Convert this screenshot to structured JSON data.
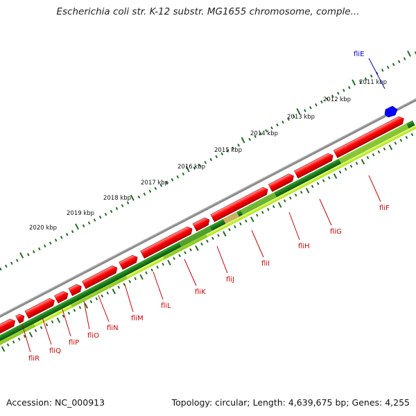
{
  "title": "Escherichia coli str. K-12 substr. MG1655 chromosome, comple...",
  "footer": {
    "accession": "Accession: NC_000913",
    "summary": "Topology: circular; Length: 4,639,675 bp; Genes: 4,255"
  },
  "scale_labels": [
    "2011 kbp",
    "2012 kbp",
    "2013 kbp",
    "2014 kbp",
    "2015 kbp",
    "2016 kbp",
    "2017 kbp",
    "2018 kbp",
    "2019 kbp",
    "2020 kbp"
  ],
  "genes": [
    {
      "name": "fliE",
      "color": "#0000cc"
    },
    {
      "name": "fliF",
      "color": "#cc0000"
    },
    {
      "name": "fliG",
      "color": "#cc0000"
    },
    {
      "name": "fliH",
      "color": "#cc0000"
    },
    {
      "name": "fliI",
      "color": "#cc0000"
    },
    {
      "name": "fliJ",
      "color": "#cc0000"
    },
    {
      "name": "fliK",
      "color": "#cc0000"
    },
    {
      "name": "fliL",
      "color": "#cc0000"
    },
    {
      "name": "fliM",
      "color": "#cc0000"
    },
    {
      "name": "fliN",
      "color": "#cc0000"
    },
    {
      "name": "fliO",
      "color": "#cc0000"
    },
    {
      "name": "fliP",
      "color": "#cc0000"
    },
    {
      "name": "fliQ",
      "color": "#cc0000"
    },
    {
      "name": "fliR",
      "color": "#cc0000"
    }
  ],
  "colors": {
    "forward_feature": "#ff0000",
    "reverse_feature": "#0000ff",
    "backbone": "#808080",
    "gc_track_dark": "#1a7a1a",
    "gc_track_light": "#ccff33",
    "tick": "#006400"
  }
}
